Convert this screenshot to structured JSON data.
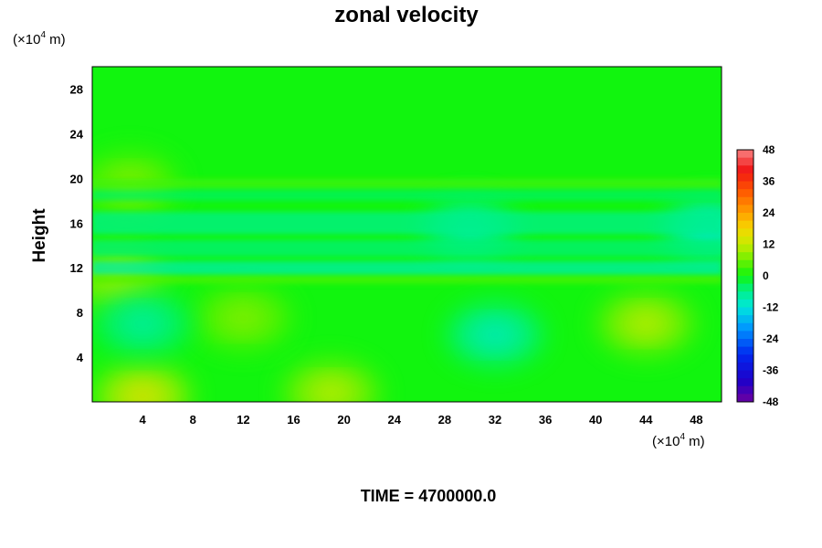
{
  "chart_data": {
    "type": "heatmap",
    "title": "zonal velocity",
    "ylabel": "Height",
    "x_unit": {
      "prefix": "(×10",
      "exp": "4",
      "suffix": " m)"
    },
    "y_unit": {
      "prefix": "(×10",
      "exp": "4",
      "suffix": " m)"
    },
    "xlim": [
      0,
      50
    ],
    "ylim": [
      0,
      30
    ],
    "x_ticks": [
      4,
      8,
      12,
      16,
      20,
      24,
      28,
      32,
      36,
      40,
      44,
      48
    ],
    "y_ticks": [
      4,
      8,
      12,
      16,
      20,
      24,
      28
    ],
    "colorbar": {
      "min": -48,
      "max": 48,
      "step": 3,
      "ticks": [
        48,
        36,
        24,
        12,
        0,
        -12,
        -24,
        -36,
        -48
      ]
    },
    "footer": "TIME = 4700000.0",
    "features": [
      {
        "x": 4,
        "y": 0.5,
        "value": 16
      },
      {
        "x": 19,
        "y": 0.8,
        "value": 12
      },
      {
        "x": 44,
        "y": 7,
        "value": 12
      },
      {
        "x": 12,
        "y": 7.5,
        "value": 8
      },
      {
        "x": 2,
        "y": 11,
        "value": 10
      },
      {
        "x": 3,
        "y": 19.5,
        "value": 8
      },
      {
        "x": 32,
        "y": 6,
        "value": -10
      },
      {
        "x": 4,
        "y": 7,
        "value": -8
      },
      {
        "x": 49,
        "y": 15.5,
        "value": -12
      },
      {
        "x": 30,
        "y": 15.5,
        "value": -9
      }
    ]
  }
}
